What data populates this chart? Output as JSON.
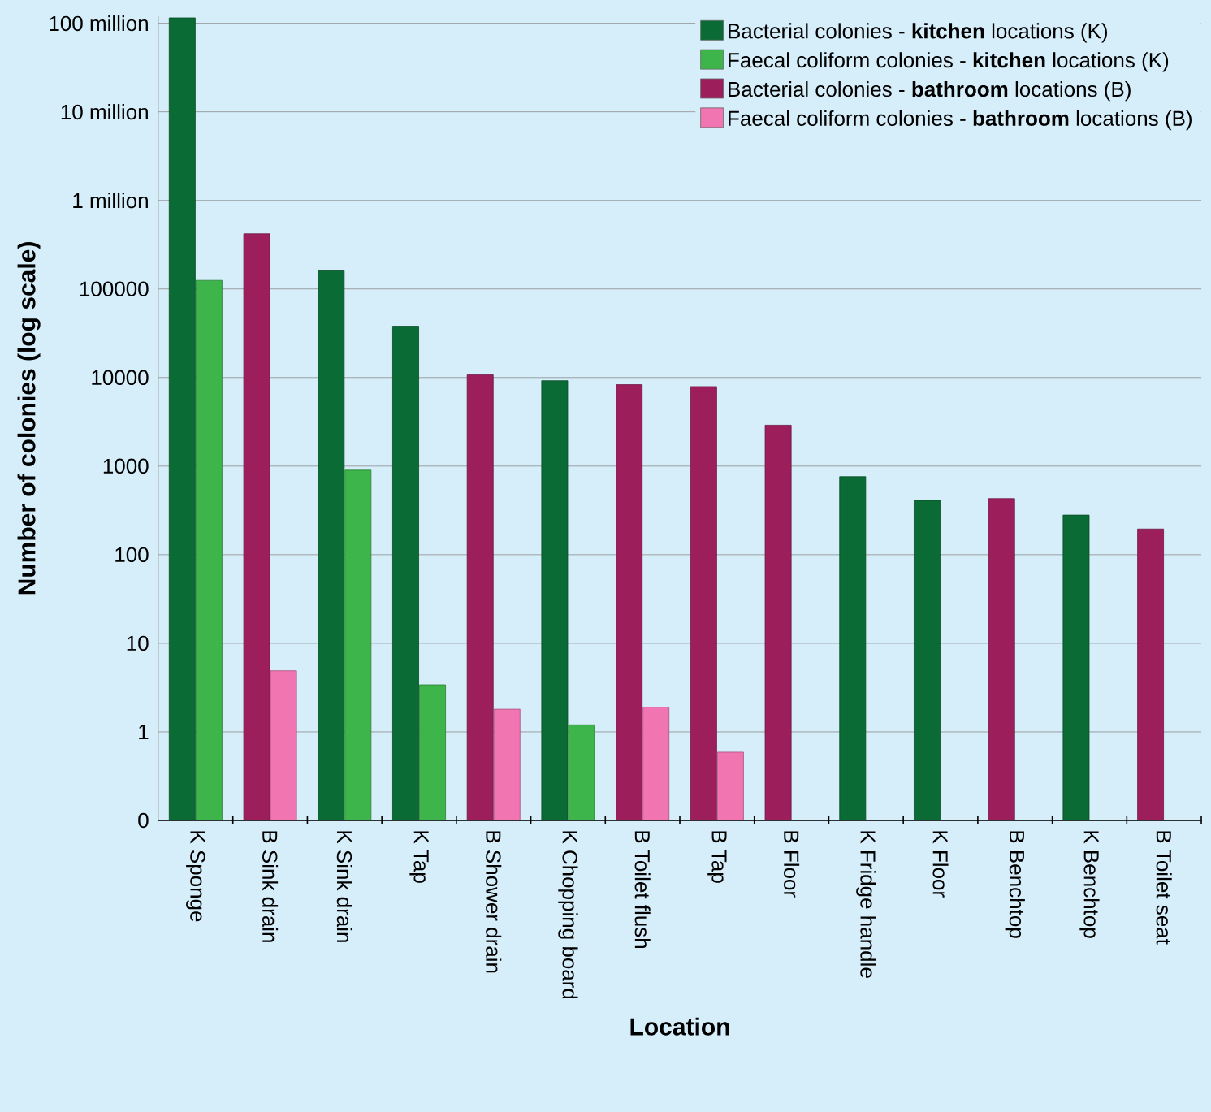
{
  "chart_data": {
    "type": "bar",
    "xlabel": "Location",
    "ylabel": "Number of colonies (log scale)",
    "categories": [
      "K Sponge",
      "B Sink drain",
      "K Sink drain",
      "K Tap",
      "B Shower drain",
      "K Chopping board",
      "B Toilet flush",
      "B Tap",
      "B Floor",
      "K Fridge handle",
      "K Floor",
      "B Benchtop",
      "K Benchtop",
      "B Toilet seat"
    ],
    "series": [
      {
        "name": "Bacterial colonies - **kitchen** locations (K)",
        "color": "#0a6b35",
        "values": [
          115000000.0,
          null,
          160000,
          38000,
          null,
          9200,
          null,
          null,
          null,
          760,
          410,
          null,
          280,
          null
        ]
      },
      {
        "name": "Faecal coliform colonies - **kitchen** locations (K)",
        "color": "#3db54a",
        "values": [
          125000,
          null,
          900,
          3.4,
          null,
          1.2,
          null,
          null,
          null,
          null,
          null,
          null,
          null,
          null
        ]
      },
      {
        "name": "Bacterial colonies - **bathroom** locations (B)",
        "color": "#9c1f5c",
        "values": [
          null,
          420000,
          null,
          null,
          10700,
          null,
          8300,
          7900,
          2900,
          null,
          null,
          430,
          null,
          195
        ]
      },
      {
        "name": "Faecal coliform colonies - **bathroom** locations (B)",
        "color": "#f075b0",
        "values": [
          null,
          4.9,
          null,
          null,
          1.8,
          null,
          1.9,
          0.59,
          null,
          null,
          null,
          null,
          null,
          null
        ]
      }
    ],
    "log": true,
    "ylim": [
      0.1,
      120000000.0
    ],
    "yticks": [
      {
        "value": 0.1,
        "label": "0"
      },
      1,
      10,
      100,
      1000,
      10000,
      100000,
      {
        "value": 1000000,
        "label": "1 million"
      },
      {
        "value": 10000000,
        "label": "10 million"
      },
      {
        "value": 100000000,
        "label": "100 million"
      }
    ],
    "grid": "y",
    "legend": "top right"
  }
}
